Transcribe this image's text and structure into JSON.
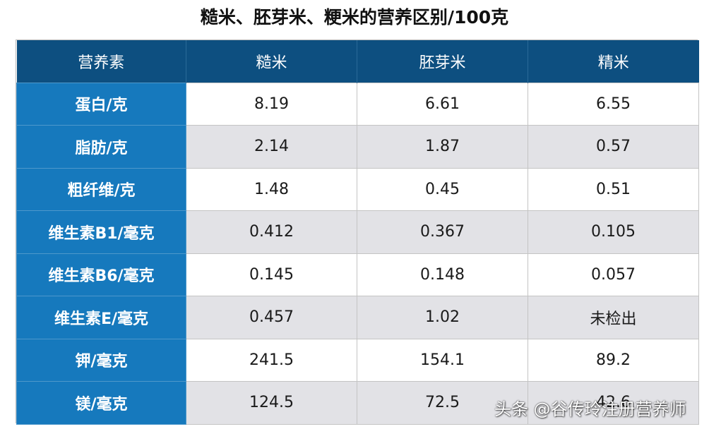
{
  "chart_data": {
    "type": "table",
    "title": "糙米、胚芽米、粳米的营养区别/100克",
    "columns": [
      "营养素",
      "糙米",
      "胚芽米",
      "精米"
    ],
    "rows": [
      {
        "nutrient": "蛋白/克",
        "values": [
          "8.19",
          "6.61",
          "6.55"
        ]
      },
      {
        "nutrient": "脂肪/克",
        "values": [
          "2.14",
          "1.87",
          "0.57"
        ]
      },
      {
        "nutrient": "粗纤维/克",
        "values": [
          "1.48",
          "0.45",
          "0.51"
        ]
      },
      {
        "nutrient": "维生素B1/毫克",
        "values": [
          "0.412",
          "0.367",
          "0.105"
        ]
      },
      {
        "nutrient": "维生素B6/毫克",
        "values": [
          "0.145",
          "0.148",
          "0.057"
        ]
      },
      {
        "nutrient": "维生素E/毫克",
        "values": [
          "0.457",
          "1.02",
          "未检出"
        ]
      },
      {
        "nutrient": "钾/毫克",
        "values": [
          "241.5",
          "154.1",
          "89.2"
        ]
      },
      {
        "nutrient": "镁/毫克",
        "values": [
          "124.5",
          "72.5",
          "42.6"
        ]
      }
    ]
  },
  "watermark": "头条 @谷传玲注册营养师",
  "colors": {
    "header_bg": "#0d4f80",
    "label_bg": "#1679bd",
    "alt_row_bg": "#e2e2e6"
  }
}
